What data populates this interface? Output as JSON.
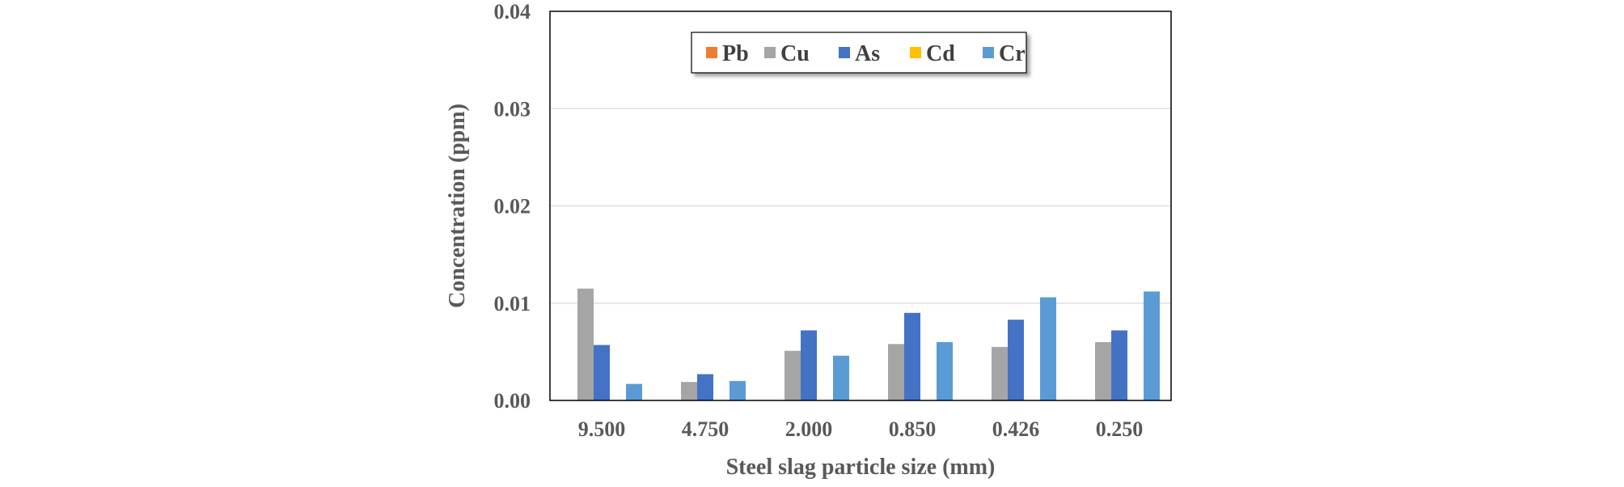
{
  "chart_data": {
    "type": "bar",
    "title": "",
    "xlabel": "Steel slag particle size (mm)",
    "ylabel": "Concentration (ppm)",
    "categories": [
      "9.500",
      "4.750",
      "2.000",
      "0.850",
      "0.426",
      "0.250"
    ],
    "ylim": [
      0,
      0.04
    ],
    "yticks": [
      "0.00",
      "0.01",
      "0.02",
      "0.03",
      "0.04"
    ],
    "grid": true,
    "legend_position": "top-center",
    "series": [
      {
        "name": "Pb",
        "color": "#ED7D31",
        "values": [
          0,
          0,
          0,
          0,
          0,
          0
        ]
      },
      {
        "name": "Cu",
        "color": "#A5A5A5",
        "values": [
          0.0115,
          0.0019,
          0.0051,
          0.0058,
          0.0055,
          0.006
        ]
      },
      {
        "name": "As",
        "color": "#4472C4",
        "values": [
          0.0057,
          0.0027,
          0.0072,
          0.009,
          0.0083,
          0.0072
        ]
      },
      {
        "name": "Cd",
        "color": "#FFC000",
        "values": [
          0,
          0,
          0,
          0,
          0,
          0
        ]
      },
      {
        "name": "Cr",
        "color": "#5B9BD5",
        "values": [
          0.0017,
          0.002,
          0.0046,
          0.006,
          0.0106,
          0.0112
        ]
      }
    ]
  }
}
